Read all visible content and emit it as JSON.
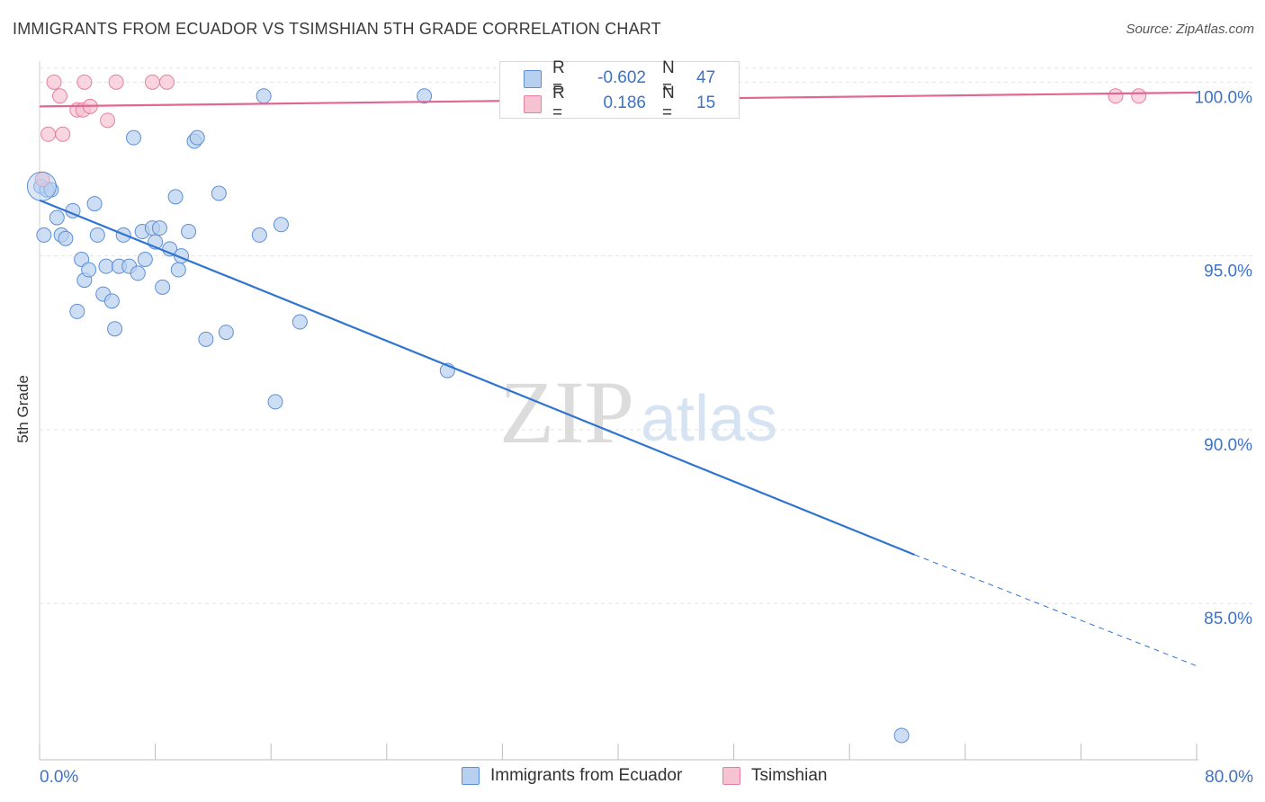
{
  "chart_data": {
    "type": "scatter",
    "title": "IMMIGRANTS FROM ECUADOR VS TSIMSHIAN 5TH GRADE CORRELATION CHART",
    "source": "Source: ZipAtlas.com",
    "xlabel": "",
    "ylabel": "5th Grade",
    "xlim": [
      0,
      80
    ],
    "ylim": [
      80.5,
      100.5
    ],
    "x_tick_labels": [
      "0.0%",
      "80.0%"
    ],
    "y_ticks": [
      85,
      90,
      95,
      100
    ],
    "y_tick_labels": [
      "85.0%",
      "90.0%",
      "95.0%",
      "100.0%"
    ],
    "watermark": {
      "zip": "ZIP",
      "atlas": "atlas"
    },
    "legend": {
      "r_label": "R =",
      "n_label": "N =",
      "rows": [
        {
          "name": "Immigrants from Ecuador",
          "r": "-0.602",
          "n": "47"
        },
        {
          "name": "Tsimshian",
          "r": "0.186",
          "n": "15"
        }
      ]
    },
    "series": [
      {
        "name": "Immigrants from Ecuador",
        "color": "#5b8fd6",
        "fill": "#b8d0f0",
        "trend": {
          "x0": 0,
          "y0": 96.6,
          "x1": 60.5,
          "y1": 86.4,
          "dash_to_x": 80,
          "dash_to_y": 83.2
        },
        "points": [
          [
            0.1,
            97.0
          ],
          [
            0.5,
            96.9
          ],
          [
            0.8,
            96.9
          ],
          [
            1.2,
            96.1
          ],
          [
            1.5,
            95.6
          ],
          [
            1.8,
            95.5
          ],
          [
            2.3,
            96.3
          ],
          [
            2.6,
            93.4
          ],
          [
            2.9,
            94.9
          ],
          [
            3.1,
            94.3
          ],
          [
            3.4,
            94.6
          ],
          [
            3.8,
            96.5
          ],
          [
            4.0,
            95.6
          ],
          [
            4.4,
            93.9
          ],
          [
            4.6,
            94.7
          ],
          [
            5.0,
            93.7
          ],
          [
            5.2,
            92.9
          ],
          [
            5.5,
            94.7
          ],
          [
            5.8,
            95.6
          ],
          [
            6.2,
            94.7
          ],
          [
            6.5,
            98.4
          ],
          [
            6.8,
            94.5
          ],
          [
            7.1,
            95.7
          ],
          [
            7.3,
            94.9
          ],
          [
            7.8,
            95.8
          ],
          [
            8.0,
            95.4
          ],
          [
            8.3,
            95.8
          ],
          [
            8.5,
            94.1
          ],
          [
            9.0,
            95.2
          ],
          [
            9.4,
            96.7
          ],
          [
            9.6,
            94.6
          ],
          [
            9.8,
            95.0
          ],
          [
            10.3,
            95.7
          ],
          [
            10.7,
            98.3
          ],
          [
            10.9,
            98.4
          ],
          [
            11.5,
            92.6
          ],
          [
            12.4,
            96.8
          ],
          [
            12.9,
            92.8
          ],
          [
            15.2,
            95.6
          ],
          [
            15.5,
            99.6
          ],
          [
            16.3,
            90.8
          ],
          [
            16.7,
            95.9
          ],
          [
            18.0,
            93.1
          ],
          [
            26.6,
            99.6
          ],
          [
            28.2,
            91.7
          ],
          [
            59.6,
            81.2
          ],
          [
            0.3,
            95.6
          ]
        ]
      },
      {
        "name": "Tsimshian",
        "color": "#e87ea2",
        "fill": "#f6c3d3",
        "trend": {
          "x0": 0,
          "y0": 99.3,
          "x1": 80,
          "y1": 99.7
        },
        "points": [
          [
            0.2,
            97.2
          ],
          [
            0.6,
            98.5
          ],
          [
            1.0,
            100.0
          ],
          [
            1.4,
            99.6
          ],
          [
            1.6,
            98.5
          ],
          [
            2.6,
            99.2
          ],
          [
            3.1,
            100.0
          ],
          [
            3.0,
            99.2
          ],
          [
            3.5,
            99.3
          ],
          [
            4.7,
            98.9
          ],
          [
            5.3,
            100.0
          ],
          [
            7.8,
            100.0
          ],
          [
            8.8,
            100.0
          ],
          [
            74.4,
            99.6
          ],
          [
            76.0,
            99.6
          ]
        ]
      }
    ]
  }
}
